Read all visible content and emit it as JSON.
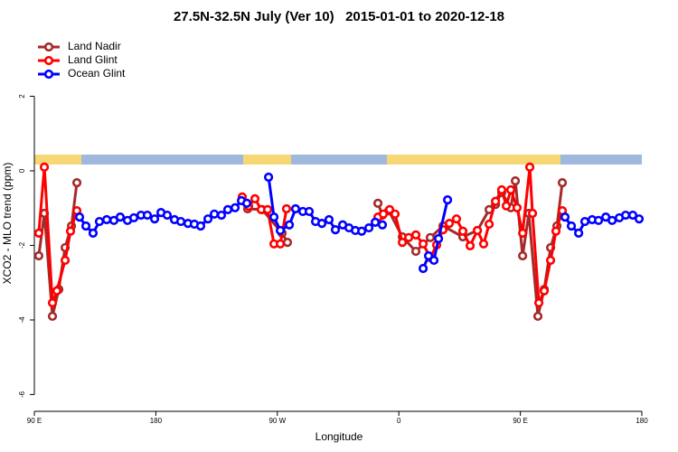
{
  "chart_data": {
    "type": "line",
    "title": "27.5N-32.5N July (Ver 10)   2015-01-01 to 2020-12-18",
    "x_label": "Longitude",
    "y_label": "XCO2 - MLO trend (ppm)",
    "xlim": [
      90,
      540
    ],
    "xticks": [
      {
        "value": 90,
        "label": "90 E"
      },
      180,
      {
        "value": 270,
        "label": "90 W"
      },
      {
        "value": 360,
        "label": "0"
      },
      {
        "value": 450,
        "label": "90 E"
      },
      {
        "value": 540,
        "label": "180"
      }
    ],
    "ylim": [
      -6.45,
      3.66
    ],
    "yticks": [
      -6,
      -4,
      -2,
      0,
      2
    ],
    "legend": "top-left",
    "series": [
      {
        "name": "Land Nadir",
        "color": "#a52a2a",
        "x": [
          93.3,
          97.4,
          103.4,
          108.1,
          112.8,
          117.5,
          121.5,
          null,
          244.0,
          248.0,
          258.8,
          273.5,
          277.5,
          null,
          344.5,
          347.8,
          352.5,
          362.6,
          372.6,
          383.3,
          392.7,
          407.4,
          418.2,
          426.9,
          431.6,
          436.2,
          442.9,
          446.3,
          451.7,
          456.3,
          463.0,
          467.7,
          472.4,
          477.1,
          481.1
        ],
        "values": [
          -2.28,
          -1.14,
          -3.9,
          -3.18,
          -2.06,
          -1.48,
          -0.32,
          null,
          -0.8,
          -1.02,
          -1.04,
          -1.67,
          -1.92,
          null,
          -0.87,
          -1.19,
          -1.07,
          -1.77,
          -2.16,
          -1.79,
          -1.48,
          -1.77,
          -1.6,
          -1.04,
          -0.9,
          -0.58,
          -0.99,
          -0.27,
          -2.28,
          -1.14,
          -3.9,
          -3.18,
          -2.06,
          -1.48,
          -0.32
        ]
      },
      {
        "name": "Land Glint",
        "color": "#ff0000",
        "x": [
          93.3,
          97.4,
          103.4,
          106.7,
          112.8,
          116.8,
          121.5,
          null,
          244.0,
          248.7,
          253.4,
          258.1,
          262.8,
          267.5,
          272.2,
          276.8,
          null,
          344.5,
          348.5,
          353.2,
          357.2,
          362.6,
          367.3,
          372.6,
          378.0,
          383.3,
          388.0,
          392.7,
          397.4,
          402.7,
          407.4,
          412.8,
          418.2,
          422.8,
          426.9,
          431.6,
          436.2,
          439.6,
          442.9,
          447.6,
          451.7,
          457.0,
          459.0,
          463.7,
          467.7,
          472.4,
          476.4,
          481.1
        ],
        "values": [
          -1.67,
          0.1,
          -3.54,
          -3.22,
          -2.4,
          -1.62,
          -1.07,
          null,
          -0.7,
          -0.95,
          -0.75,
          -1.04,
          -1.04,
          -1.96,
          -1.96,
          -1.02,
          null,
          -1.24,
          -1.16,
          -1.04,
          -1.16,
          -1.92,
          -1.79,
          -1.72,
          -1.96,
          -2.33,
          -1.99,
          -1.58,
          -1.41,
          -1.29,
          -1.62,
          -2.01,
          -1.6,
          -1.96,
          -1.43,
          -0.82,
          -0.51,
          -0.94,
          -0.51,
          -0.99,
          -1.67,
          0.1,
          -1.14,
          -3.54,
          -3.22,
          -2.4,
          -1.62,
          -1.07
        ]
      },
      {
        "name": "Ocean Glint",
        "color": "#0000ff",
        "x": [
          123.5,
          128.2,
          133.5,
          138.2,
          143.6,
          148.9,
          153.6,
          159.0,
          163.7,
          169.0,
          173.7,
          179.1,
          183.8,
          188.4,
          193.8,
          198.5,
          203.8,
          208.5,
          213.2,
          218.6,
          223.3,
          228.6,
          233.3,
          238.7,
          243.4,
          247.4,
          null,
          263.5,
          267.5,
          272.2,
          278.9,
          283.5,
          288.9,
          293.6,
          298.3,
          303.0,
          308.3,
          313.0,
          318.4,
          323.1,
          327.8,
          332.5,
          337.8,
          342.5,
          347.8,
          null,
          378.0,
          382.0,
          386.0,
          389.4,
          396.1,
          null,
          483.1,
          487.8,
          493.2,
          497.8,
          503.2,
          507.9,
          513.3,
          518.0,
          523.3,
          528.0,
          533.3,
          538.0
        ],
        "values": [
          -1.24,
          -1.48,
          -1.67,
          -1.36,
          -1.31,
          -1.33,
          -1.24,
          -1.33,
          -1.26,
          -1.19,
          -1.19,
          -1.29,
          -1.12,
          -1.19,
          -1.31,
          -1.36,
          -1.41,
          -1.43,
          -1.48,
          -1.29,
          -1.16,
          -1.19,
          -1.04,
          -0.99,
          -0.8,
          -0.87,
          null,
          -0.17,
          -1.24,
          -1.6,
          -1.45,
          -1.02,
          -1.09,
          -1.09,
          -1.36,
          -1.41,
          -1.31,
          -1.58,
          -1.45,
          -1.53,
          -1.6,
          -1.62,
          -1.53,
          -1.38,
          -1.45,
          null,
          -2.62,
          -2.28,
          -2.4,
          -1.82,
          -0.78,
          null,
          -1.24,
          -1.48,
          -1.67,
          -1.36,
          -1.31,
          -1.33,
          -1.24,
          -1.33,
          -1.26,
          -1.19,
          -1.19,
          -1.29
        ]
      }
    ]
  }
}
